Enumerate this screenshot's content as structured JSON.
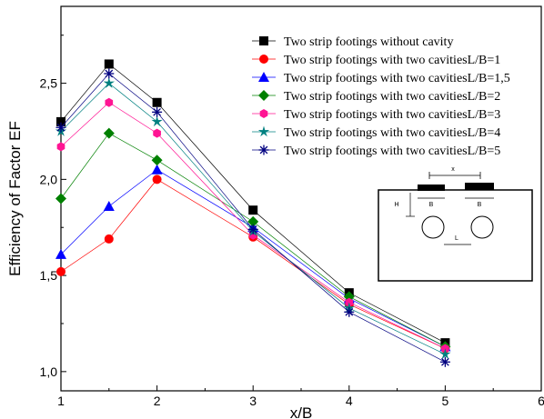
{
  "chart_data": {
    "type": "line",
    "xlabel": "x/B",
    "ylabel": "Efficiency of Factor EF",
    "xlim": [
      1,
      6
    ],
    "ylim": [
      0.9,
      2.9
    ],
    "x_ticks": [
      "1",
      "2",
      "3",
      "4",
      "5",
      "6"
    ],
    "y_ticks": [
      "1,0",
      "1,5",
      "2,0",
      "2,5"
    ],
    "y_tick_values": [
      1.0,
      1.5,
      2.0,
      2.5
    ],
    "legend_position": "top-right",
    "x": [
      1,
      1.5,
      2,
      3,
      4,
      5
    ],
    "series": [
      {
        "name": "Two strip footings without cavity",
        "color": "#000000",
        "marker": "square",
        "values": [
          2.3,
          2.6,
          2.4,
          1.84,
          1.41,
          1.15
        ]
      },
      {
        "name": "Two strip footings with two cavitiesL/B=1",
        "color": "#ff0000",
        "marker": "circle",
        "values": [
          1.52,
          1.69,
          2.0,
          1.7,
          1.35,
          1.12
        ]
      },
      {
        "name": "Two strip footings with two cavitiesL/B=1,5",
        "color": "#0000ff",
        "marker": "triangle",
        "values": [
          1.61,
          1.86,
          2.05,
          1.75,
          1.38,
          1.13
        ]
      },
      {
        "name": "Two strip footings with two cavitiesL/B=2",
        "color": "#008000",
        "marker": "diamond",
        "values": [
          1.9,
          2.24,
          2.1,
          1.78,
          1.39,
          1.13
        ]
      },
      {
        "name": "Two strip footings with two cavitiesL/B=3",
        "color": "#ff1493",
        "marker": "hexagon",
        "values": [
          2.17,
          2.4,
          2.24,
          1.71,
          1.36,
          1.12
        ]
      },
      {
        "name": "Two strip footings with two cavitiesL/B=4",
        "color": "#008080",
        "marker": "star",
        "values": [
          2.25,
          2.5,
          2.3,
          1.73,
          1.33,
          1.09
        ]
      },
      {
        "name": "Two strip footings with two cavitiesL/B=5",
        "color": "#000080",
        "marker": "asterisk",
        "values": [
          2.27,
          2.55,
          2.35,
          1.74,
          1.31,
          1.05
        ]
      }
    ],
    "inset": {
      "label_x": "x",
      "label_b1": "B",
      "label_b2": "B",
      "label_h": "H",
      "label_l": "L"
    }
  }
}
